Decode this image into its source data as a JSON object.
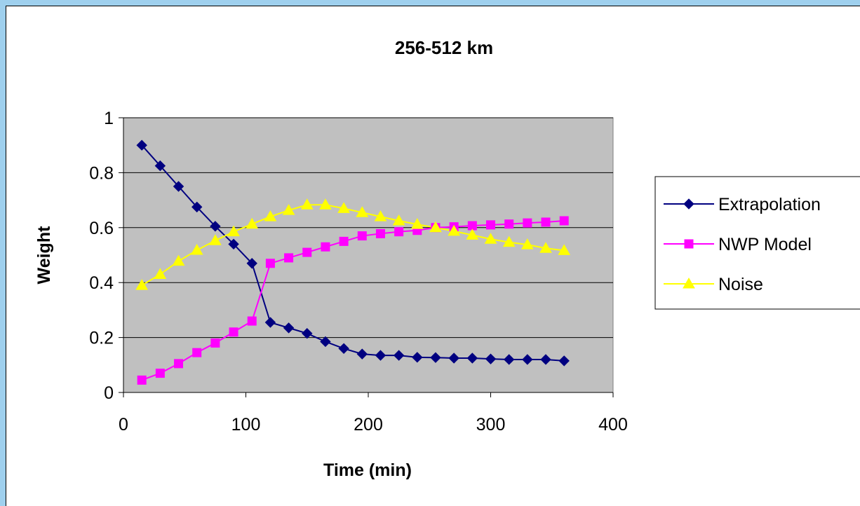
{
  "chart_data": {
    "type": "line",
    "title": "256-512 km",
    "xlabel": "Time (min)",
    "ylabel": "Weight",
    "xlim": [
      0,
      400
    ],
    "ylim": [
      0,
      1
    ],
    "xticks": [
      "0",
      "100",
      "200",
      "300",
      "400"
    ],
    "yticks": [
      "0",
      "0.2",
      "0.4",
      "0.6",
      "0.8",
      "1"
    ],
    "grid": "horizontal",
    "plot_background": "#c0c0c0",
    "legend_position": "right",
    "x": [
      15,
      30,
      45,
      60,
      75,
      90,
      105,
      120,
      135,
      150,
      165,
      180,
      195,
      210,
      225,
      240,
      255,
      270,
      285,
      300,
      315,
      330,
      345,
      360
    ],
    "series": [
      {
        "name": "Extrapolation",
        "color": "#000080",
        "marker": "diamond",
        "values": [
          0.9,
          0.825,
          0.75,
          0.675,
          0.605,
          0.54,
          0.47,
          0.255,
          0.235,
          0.215,
          0.185,
          0.16,
          0.14,
          0.135,
          0.135,
          0.128,
          0.127,
          0.125,
          0.125,
          0.122,
          0.12,
          0.12,
          0.12,
          0.115
        ]
      },
      {
        "name": "NWP Model",
        "color": "#ff00ff",
        "marker": "square",
        "values": [
          0.045,
          0.07,
          0.105,
          0.145,
          0.18,
          0.22,
          0.26,
          0.47,
          0.49,
          0.51,
          0.53,
          0.55,
          0.57,
          0.578,
          0.585,
          0.59,
          0.6,
          0.603,
          0.607,
          0.61,
          0.613,
          0.617,
          0.62,
          0.625
        ]
      },
      {
        "name": "Noise",
        "color": "#ffff00",
        "marker": "triangle",
        "values": [
          0.39,
          0.43,
          0.478,
          0.518,
          0.553,
          0.585,
          0.613,
          0.64,
          0.663,
          0.683,
          0.683,
          0.67,
          0.655,
          0.64,
          0.625,
          0.612,
          0.6,
          0.587,
          0.573,
          0.558,
          0.547,
          0.538,
          0.525,
          0.517
        ]
      }
    ]
  }
}
